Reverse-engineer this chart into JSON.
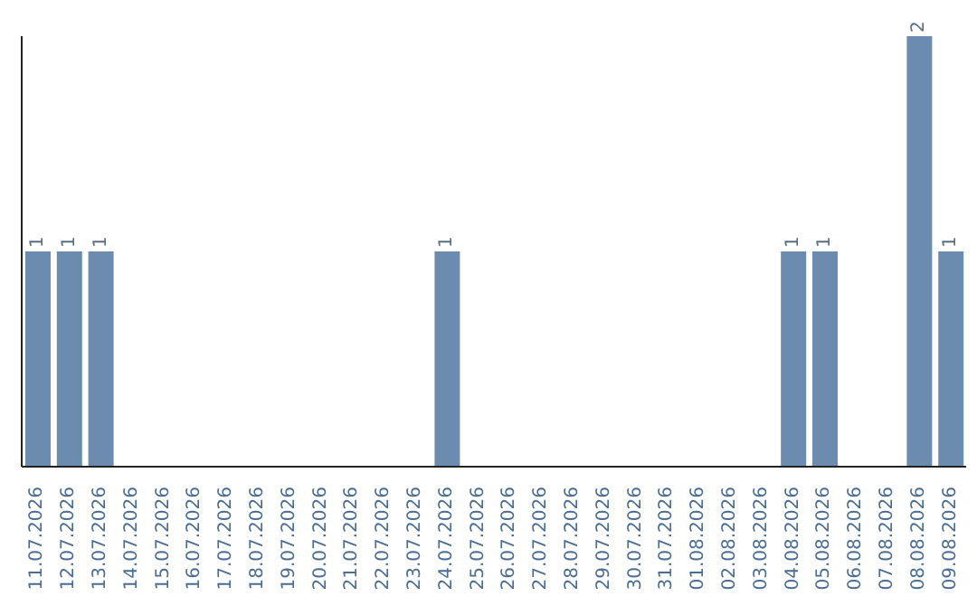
{
  "chart_data": {
    "type": "bar",
    "categories": [
      "11.07.2026",
      "12.07.2026",
      "13.07.2026",
      "14.07.2026",
      "15.07.2026",
      "16.07.2026",
      "17.07.2026",
      "18.07.2026",
      "19.07.2026",
      "20.07.2026",
      "21.07.2026",
      "22.07.2026",
      "23.07.2026",
      "24.07.2026",
      "25.07.2026",
      "26.07.2026",
      "27.07.2026",
      "28.07.2026",
      "29.07.2026",
      "30.07.2026",
      "31.07.2026",
      "01.08.2026",
      "02.08.2026",
      "03.08.2026",
      "04.08.2026",
      "05.08.2026",
      "06.08.2026",
      "07.08.2026",
      "08.08.2026",
      "09.08.2026"
    ],
    "values": [
      1,
      1,
      1,
      0,
      0,
      0,
      0,
      0,
      0,
      0,
      0,
      0,
      0,
      1,
      0,
      0,
      0,
      0,
      0,
      0,
      0,
      0,
      0,
      0,
      1,
      1,
      0,
      0,
      2,
      1
    ],
    "value_labels": [
      "1",
      "1",
      "1",
      null,
      null,
      null,
      null,
      null,
      null,
      null,
      null,
      null,
      null,
      "1",
      null,
      null,
      null,
      null,
      null,
      null,
      null,
      null,
      null,
      null,
      "1",
      "1",
      null,
      null,
      "2",
      "1"
    ],
    "color": "#6b8cae",
    "tick_labels": "x"
  }
}
